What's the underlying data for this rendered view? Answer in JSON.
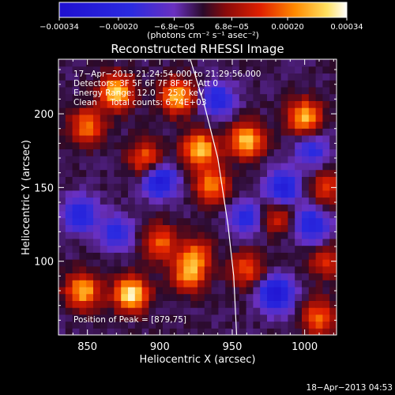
{
  "chart_data": {
    "type": "heatmap",
    "title": "Reconstructed RHESSI Image",
    "xlabel": "Heliocentric X (arcsec)",
    "ylabel": "Heliocentric Y (arcsec)",
    "xlim": [
      830,
      1022
    ],
    "ylim": [
      50,
      237
    ],
    "x_ticks": [
      850,
      900,
      950,
      1000
    ],
    "y_ticks": [
      100,
      150,
      200
    ],
    "colorbar": {
      "units": "(photons cm⁻² s⁻¹ asec⁻²)",
      "ticks": [
        {
          "value": -0.00034,
          "label": "−0.00034"
        },
        {
          "value": -0.0002,
          "label": "−0.00020"
        },
        {
          "value": -6.8e-05,
          "label": "−6.8e−05"
        },
        {
          "value": 6.8e-05,
          "label": "6.8e−05"
        },
        {
          "value": 0.0002,
          "label": "0.00020"
        },
        {
          "value": 0.00034,
          "label": "0.00034"
        }
      ],
      "range": [
        -0.00034,
        0.00034
      ]
    },
    "annotations": [
      "17−Apr−2013 21:24:54.000 to 21:29:56.000",
      "Detectors: 3F 5F 6F 7F 8F 9F, Att 0",
      "Energy Range: 12.0 − 25.0 keV",
      "Clean     Total counts: 6.74E+03"
    ],
    "peak_label": "Position of Peak = [879,75]",
    "hotspots": [
      {
        "x": 870,
        "y": 215,
        "value": 0.0003
      },
      {
        "x": 912,
        "y": 212,
        "value": 0.00028
      },
      {
        "x": 850,
        "y": 192,
        "value": 0.00022
      },
      {
        "x": 890,
        "y": 170,
        "value": 0.0002
      },
      {
        "x": 928,
        "y": 176,
        "value": 0.0003
      },
      {
        "x": 936,
        "y": 152,
        "value": 0.00024
      },
      {
        "x": 960,
        "y": 182,
        "value": 0.0003
      },
      {
        "x": 1000,
        "y": 198,
        "value": 0.00028
      },
      {
        "x": 1015,
        "y": 150,
        "value": 0.00016
      },
      {
        "x": 900,
        "y": 113,
        "value": 0.0002
      },
      {
        "x": 925,
        "y": 105,
        "value": 0.00018
      },
      {
        "x": 880,
        "y": 78,
        "value": 0.00034
      },
      {
        "x": 920,
        "y": 92,
        "value": 0.00024
      },
      {
        "x": 847,
        "y": 80,
        "value": 0.00028
      },
      {
        "x": 960,
        "y": 95,
        "value": 0.00018
      },
      {
        "x": 980,
        "y": 130,
        "value": 0.00014
      },
      {
        "x": 1015,
        "y": 100,
        "value": 0.00014
      },
      {
        "x": 1010,
        "y": 62,
        "value": 0.0002
      }
    ],
    "coldspots": [
      {
        "x": 900,
        "y": 155,
        "value": -0.00026
      },
      {
        "x": 845,
        "y": 132,
        "value": -0.00022
      },
      {
        "x": 940,
        "y": 210,
        "value": -0.0002
      },
      {
        "x": 985,
        "y": 150,
        "value": -0.00024
      },
      {
        "x": 1005,
        "y": 125,
        "value": -0.00022
      },
      {
        "x": 980,
        "y": 78,
        "value": -0.0003
      },
      {
        "x": 870,
        "y": 120,
        "value": -0.00016
      },
      {
        "x": 960,
        "y": 130,
        "value": -0.00018
      },
      {
        "x": 1005,
        "y": 175,
        "value": -0.00016
      }
    ],
    "limb_curve": [
      {
        "x": 921,
        "y": 237
      },
      {
        "x": 931,
        "y": 205
      },
      {
        "x": 940,
        "y": 170
      },
      {
        "x": 947,
        "y": 125
      },
      {
        "x": 951,
        "y": 90
      },
      {
        "x": 953,
        "y": 50
      }
    ]
  },
  "footer": {
    "date": "18−Apr−2013 04:53"
  }
}
